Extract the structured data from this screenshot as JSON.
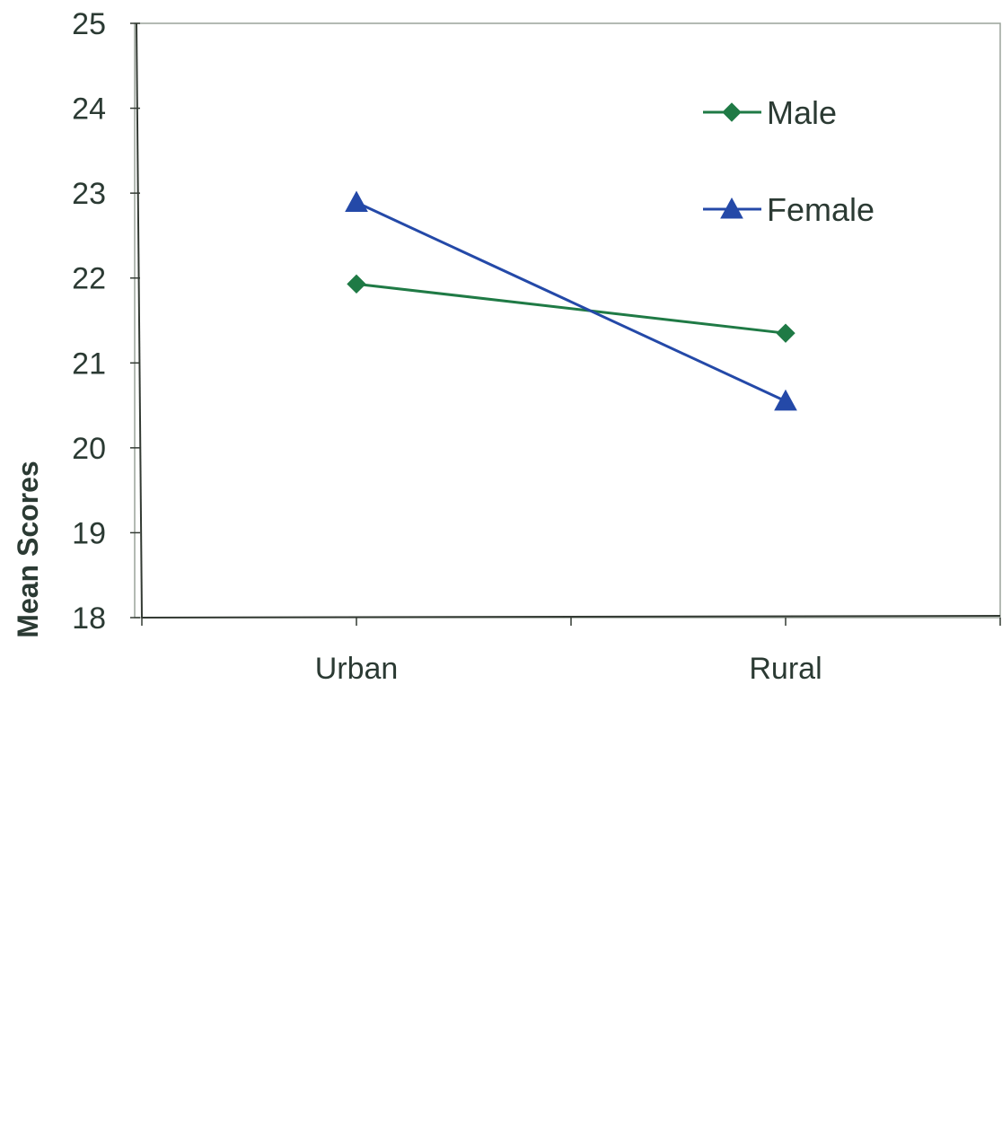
{
  "chart_data": {
    "type": "line",
    "categories": [
      "Urban",
      "Rural"
    ],
    "ylabel": "Mean Scores",
    "xlabel": "",
    "ylim": [
      18,
      25
    ],
    "yticks": [
      18,
      19,
      20,
      21,
      22,
      23,
      24,
      25
    ],
    "grid": false,
    "legend_position": "top-right",
    "series": [
      {
        "name": "Male",
        "values": [
          21.93,
          21.35
        ],
        "color": "#1f7a45",
        "marker": "diamond"
      },
      {
        "name": "Female",
        "values": [
          22.89,
          20.55
        ],
        "color": "#2449a8",
        "marker": "triangle"
      }
    ],
    "colors": {
      "axis": "#333a33",
      "text": "#2b3a33",
      "frame": "#9aa39a"
    }
  }
}
